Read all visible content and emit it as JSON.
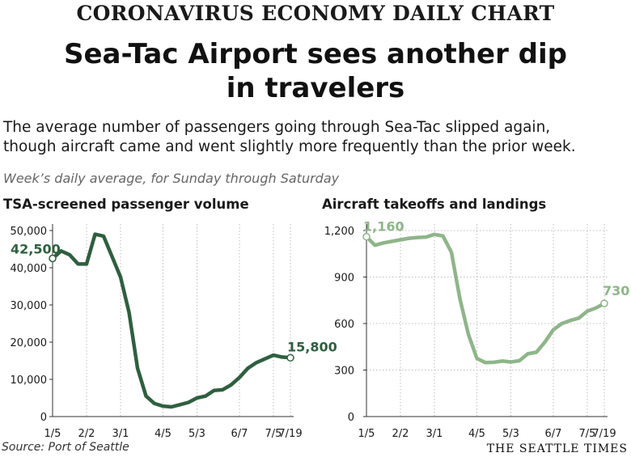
{
  "header": {
    "kicker": "CORONAVIRUS ECONOMY DAILY CHART",
    "headline_line1": "Sea-Tac Airport sees another dip",
    "headline_line2": "in travelers",
    "dek_line1": "The average number of passengers going through Sea-Tac slipped again,",
    "dek_line2": "though aircraft came and went slightly more frequently than the prior week.",
    "note": "Week’s daily average, for Sunday through Saturday"
  },
  "footer": {
    "source": "Source: Port of Seattle",
    "brand": "THE SEATTLE TIMES"
  },
  "colors": {
    "passengers_line": "#2f5f3f",
    "aircraft_line": "#8fb58a",
    "grid": "#bdbdbd",
    "text": "#1a1a1a"
  },
  "chart_data": [
    {
      "type": "line",
      "title": "TSA-screened passenger volume",
      "x_ticks": [
        "1/5",
        "2/2",
        "3/1",
        "4/5",
        "5/3",
        "6/7",
        "7/5",
        "7/19"
      ],
      "y_ticks": [
        "0",
        "10,000",
        "20,000",
        "30,000",
        "40,000",
        "50,000"
      ],
      "ylim": [
        0,
        50000
      ],
      "grid": "vertical dotted lines at x ticks",
      "x": [
        "1/5",
        "1/12",
        "1/19",
        "1/26",
        "2/2",
        "2/9",
        "2/16",
        "2/23",
        "3/1",
        "3/8",
        "3/15",
        "3/22",
        "3/29",
        "4/5",
        "4/12",
        "4/19",
        "4/26",
        "5/3",
        "5/10",
        "5/17",
        "5/24",
        "5/31",
        "6/7",
        "6/14",
        "6/21",
        "6/28",
        "7/5",
        "7/12",
        "7/19"
      ],
      "values": [
        42500,
        44500,
        43500,
        41000,
        41000,
        49000,
        48500,
        43000,
        37500,
        28000,
        13000,
        5500,
        3500,
        2800,
        2600,
        3200,
        3800,
        5000,
        5500,
        7000,
        7200,
        8500,
        10500,
        13000,
        14500,
        15500,
        16500,
        16000,
        15800
      ],
      "start_label": "42,500",
      "end_label": "15,800"
    },
    {
      "type": "line",
      "title": "Aircraft takeoffs and landings",
      "x_ticks": [
        "1/5",
        "2/2",
        "3/1",
        "4/5",
        "5/3",
        "6/7",
        "7/5",
        "7/19"
      ],
      "y_ticks": [
        "0",
        "300",
        "600",
        "900",
        "1,200"
      ],
      "ylim": [
        0,
        1200
      ],
      "grid": "horizontal and vertical dotted lines",
      "x": [
        "1/5",
        "1/12",
        "1/19",
        "1/26",
        "2/2",
        "2/9",
        "2/16",
        "2/23",
        "3/1",
        "3/8",
        "3/15",
        "3/22",
        "3/29",
        "4/5",
        "4/12",
        "4/19",
        "4/26",
        "5/3",
        "5/10",
        "5/17",
        "5/24",
        "5/31",
        "6/7",
        "6/14",
        "6/21",
        "6/28",
        "7/5",
        "7/12",
        "7/19"
      ],
      "values": [
        1160,
        1105,
        1120,
        1130,
        1140,
        1150,
        1155,
        1158,
        1175,
        1165,
        1060,
        760,
        530,
        375,
        348,
        350,
        358,
        352,
        360,
        405,
        415,
        480,
        560,
        600,
        620,
        635,
        680,
        700,
        730
      ],
      "start_label": "1,160",
      "end_label": "730"
    }
  ]
}
